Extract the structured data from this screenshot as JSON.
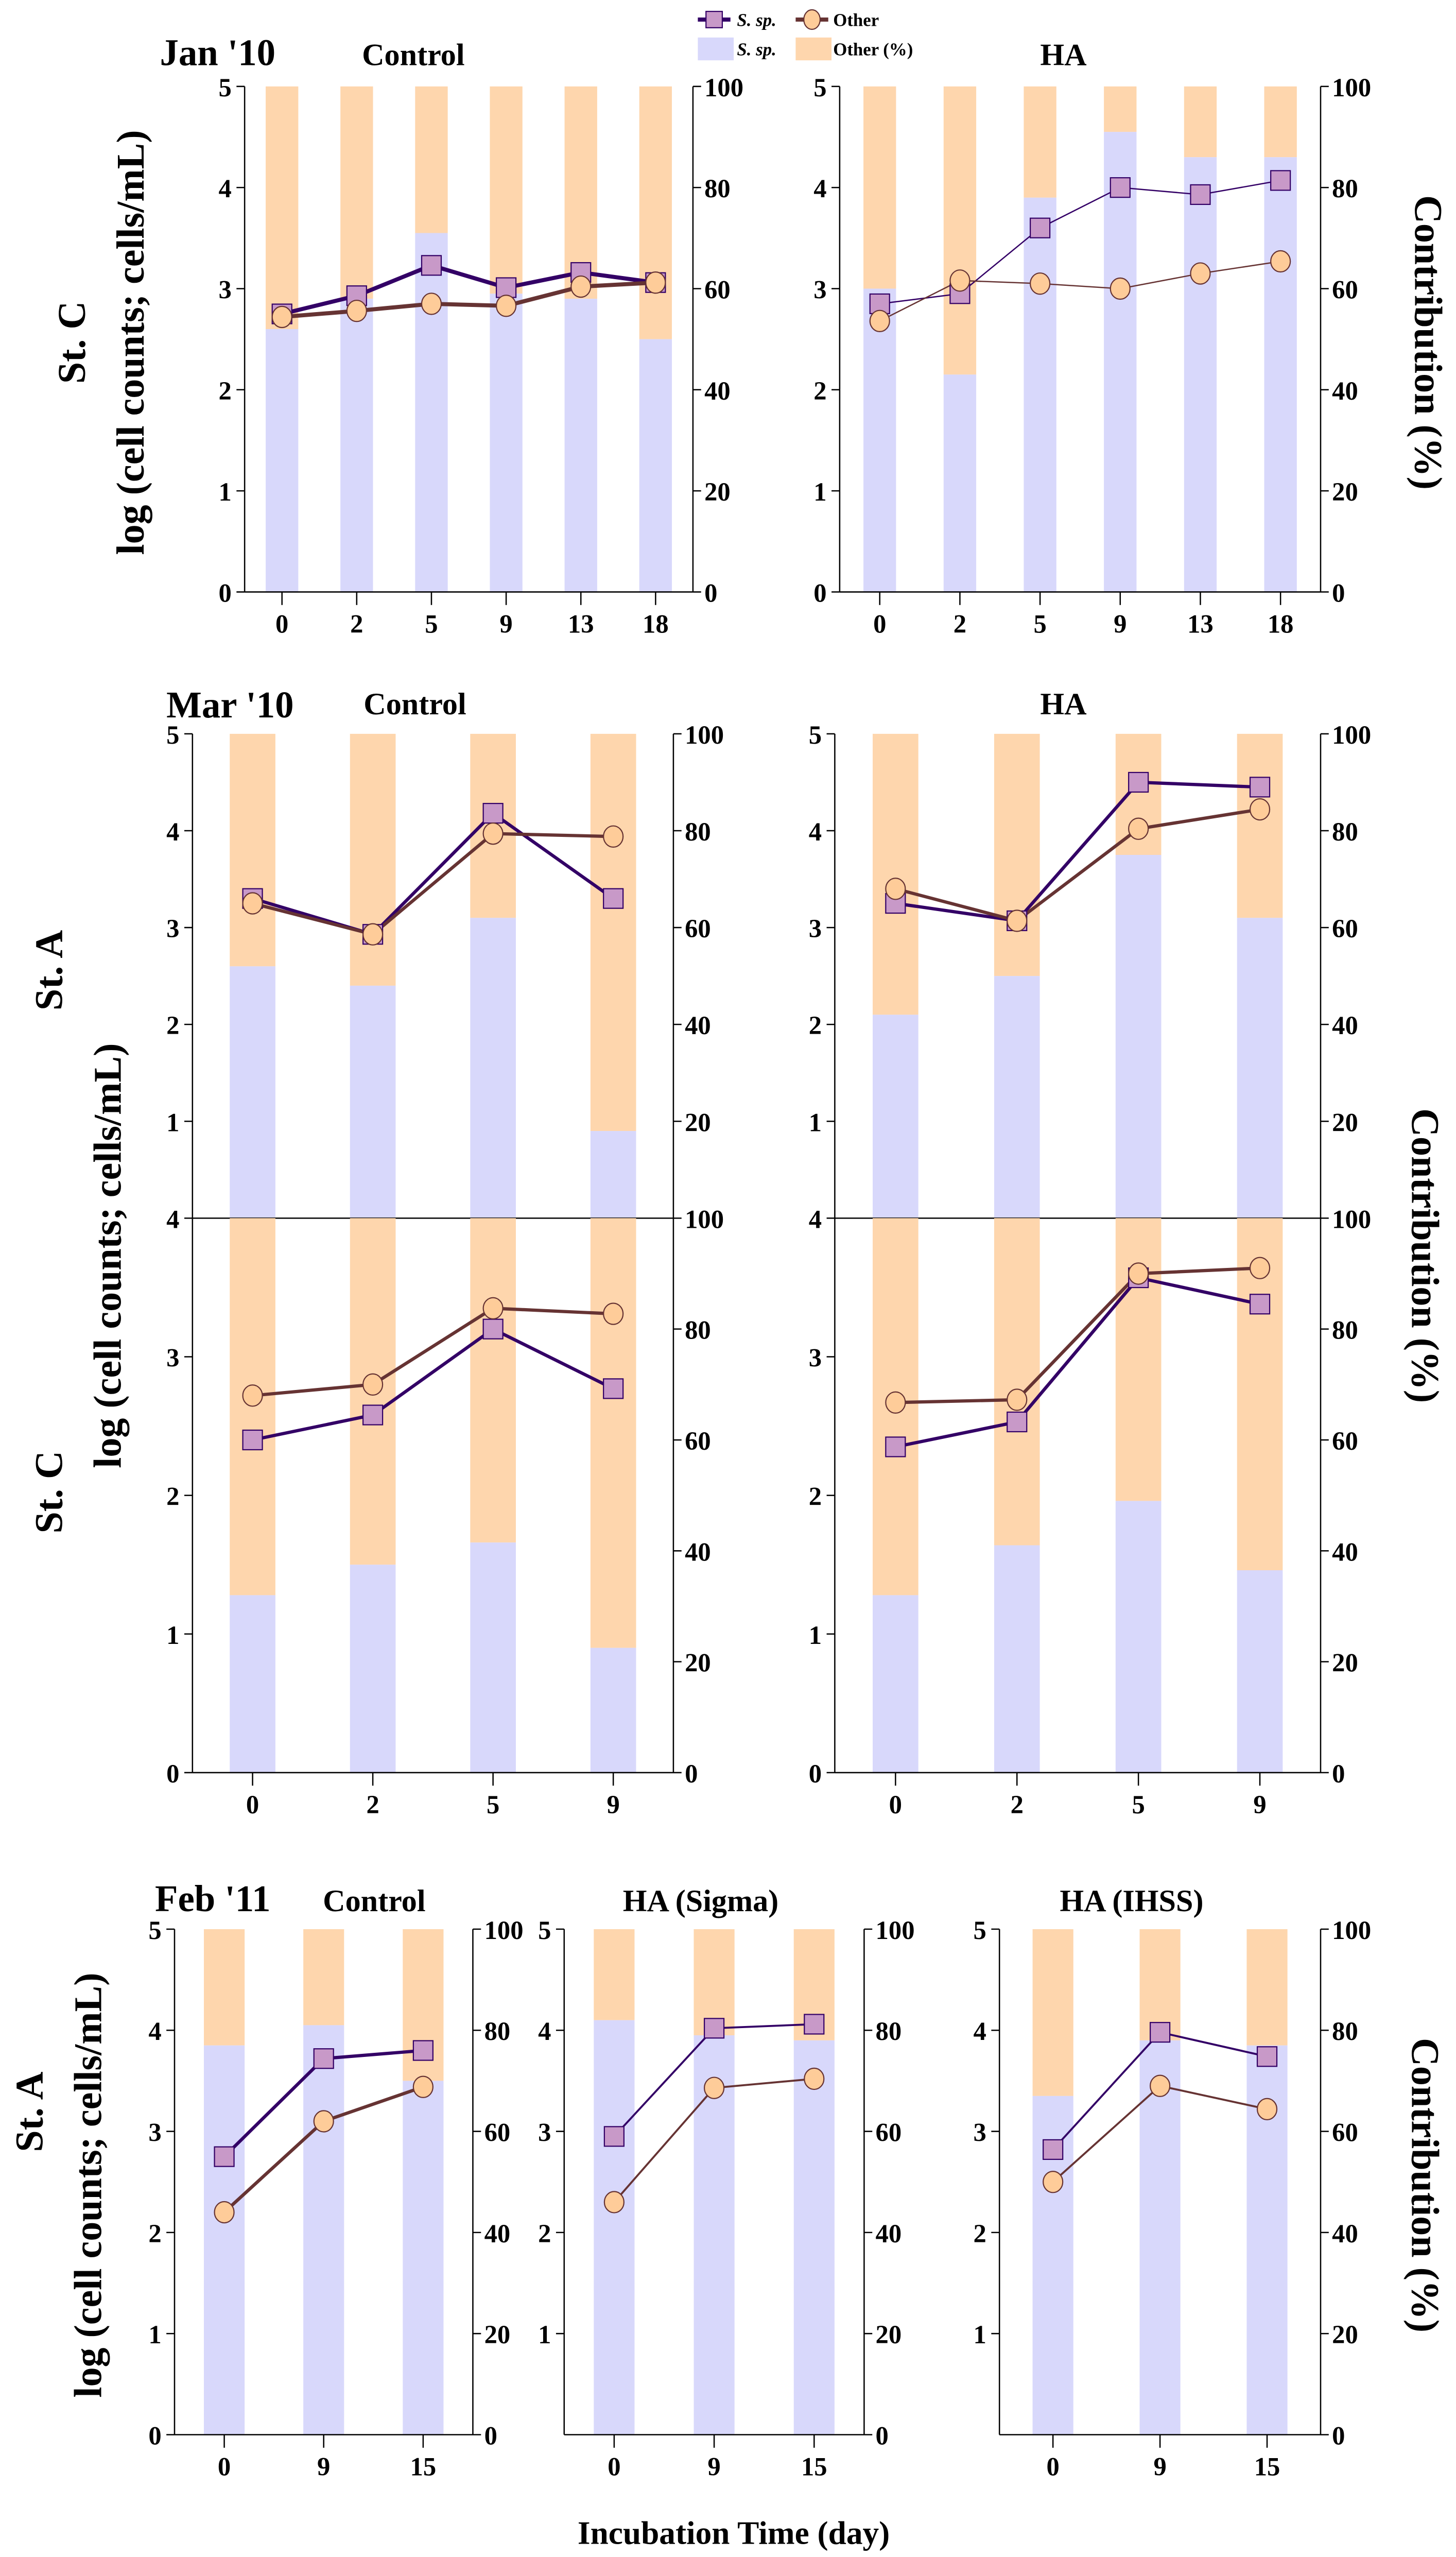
{
  "legend": {
    "line_sp": "S. sp.",
    "line_other": "Other",
    "bar_sp": "S. sp.",
    "bar_other": "Other (%)"
  },
  "labels": {
    "row_jan": "St. C",
    "row_mar_a": "St. A",
    "row_mar_c": "St. C",
    "row_feb": "St. A",
    "ylabel_left": "log (cell counts; cells/mL)",
    "ylabel_right": "Contribution (%)",
    "xlabel": "Incubation Time (day)",
    "date_jan": "Jan '10",
    "date_mar": "Mar '10",
    "date_feb": "Feb '11",
    "control": "Control",
    "ha": "HA",
    "ha_sigma": "HA (Sigma)",
    "ha_ihss": "HA (IHSS)"
  },
  "colors": {
    "sp_bar": "#d8d8fb",
    "other_bar": "#fed6ad",
    "sp_line": "#330066",
    "sp_marker": "#c899c8",
    "other_line": "#663333",
    "other_marker": "#fecc99"
  },
  "chart_data": [
    {
      "id": "jan-control",
      "type": "bar+line",
      "title": "Control",
      "categories": [
        "0",
        "2",
        "5",
        "9",
        "13",
        "18"
      ],
      "ylim": [
        0,
        5
      ],
      "y2lim": [
        0,
        100
      ],
      "yticks": [
        0,
        1,
        2,
        3,
        4,
        5
      ],
      "y2ticks": [
        0,
        20,
        40,
        60,
        80,
        100
      ],
      "sp_percent": [
        52,
        58,
        71,
        59,
        58,
        50
      ],
      "sp_log": [
        2.75,
        2.93,
        3.23,
        3.01,
        3.16,
        3.06
      ],
      "other_log": [
        2.72,
        2.78,
        2.85,
        2.83,
        3.02,
        3.06
      ]
    },
    {
      "id": "jan-ha",
      "type": "bar+line",
      "title": "HA",
      "categories": [
        "0",
        "2",
        "5",
        "9",
        "13",
        "18"
      ],
      "ylim": [
        0,
        5
      ],
      "y2lim": [
        0,
        100
      ],
      "yticks": [
        0,
        1,
        2,
        3,
        4,
        5
      ],
      "y2ticks": [
        0,
        20,
        40,
        60,
        80,
        100
      ],
      "sp_percent": [
        60,
        43,
        78,
        91,
        86,
        86
      ],
      "sp_log": [
        2.85,
        2.95,
        3.6,
        4.0,
        3.93,
        4.07
      ],
      "other_log": [
        2.68,
        3.08,
        3.05,
        3.0,
        3.15,
        3.27
      ]
    },
    {
      "id": "mar-a-control",
      "type": "bar+line",
      "title": "Control",
      "categories": [
        "0",
        "2",
        "5",
        "9"
      ],
      "ylim": [
        0,
        5
      ],
      "y2lim": [
        0,
        100
      ],
      "yticks": [
        1,
        2,
        3,
        4,
        5
      ],
      "y2ticks": [
        20,
        40,
        60,
        80,
        100
      ],
      "sp_percent": [
        52,
        48,
        62,
        18
      ],
      "sp_log": [
        3.3,
        2.93,
        4.18,
        3.3
      ],
      "other_log": [
        3.25,
        2.93,
        3.97,
        3.94
      ]
    },
    {
      "id": "mar-a-ha",
      "type": "bar+line",
      "title": "HA",
      "categories": [
        "0",
        "2",
        "5",
        "9"
      ],
      "ylim": [
        0,
        5
      ],
      "y2lim": [
        0,
        100
      ],
      "yticks": [
        1,
        2,
        3,
        4,
        5
      ],
      "y2ticks": [
        20,
        40,
        60,
        80,
        100
      ],
      "sp_percent": [
        42,
        50,
        75,
        62
      ],
      "sp_log": [
        3.25,
        3.07,
        4.5,
        4.45
      ],
      "other_log": [
        3.4,
        3.07,
        4.02,
        4.22
      ]
    },
    {
      "id": "mar-c-control",
      "type": "bar+line",
      "title": "Control",
      "categories": [
        "0",
        "2",
        "5",
        "9"
      ],
      "ylim": [
        0,
        4
      ],
      "y2lim": [
        0,
        100
      ],
      "yticks": [
        0,
        1,
        2,
        3,
        4
      ],
      "y2ticks": [
        0,
        20,
        40,
        60,
        80,
        100
      ],
      "sp_percent": [
        32,
        37.5,
        41.5,
        22.5
      ],
      "sp_log": [
        2.4,
        2.58,
        3.2,
        2.77
      ],
      "other_log": [
        2.72,
        2.8,
        3.35,
        3.31
      ]
    },
    {
      "id": "mar-c-ha",
      "type": "bar+line",
      "title": "HA",
      "categories": [
        "0",
        "2",
        "5",
        "9"
      ],
      "ylim": [
        0,
        4
      ],
      "y2lim": [
        0,
        100
      ],
      "yticks": [
        0,
        1,
        2,
        3,
        4
      ],
      "y2ticks": [
        0,
        20,
        40,
        60,
        80,
        100
      ],
      "sp_percent": [
        32,
        41,
        49,
        36.5
      ],
      "sp_log": [
        2.35,
        2.53,
        3.57,
        3.38
      ],
      "other_log": [
        2.67,
        2.69,
        3.6,
        3.64
      ]
    },
    {
      "id": "feb-control",
      "type": "bar+line",
      "title": "Control",
      "categories": [
        "0",
        "9",
        "15"
      ],
      "ylim": [
        0,
        5
      ],
      "y2lim": [
        0,
        100
      ],
      "yticks": [
        0,
        1,
        2,
        3,
        4,
        5
      ],
      "y2ticks": [
        0,
        20,
        40,
        60,
        80,
        100
      ],
      "sp_percent": [
        77,
        81,
        70
      ],
      "sp_log": [
        2.75,
        3.72,
        3.8
      ],
      "other_log": [
        2.2,
        3.1,
        3.44
      ]
    },
    {
      "id": "feb-sigma",
      "type": "bar+line",
      "title": "HA (Sigma)",
      "categories": [
        "0",
        "9",
        "15"
      ],
      "ylim": [
        0,
        5
      ],
      "y2lim": [
        0,
        100
      ],
      "yticks": [
        1,
        2,
        3,
        4,
        5
      ],
      "y2ticks": [
        0,
        20,
        40,
        60,
        80,
        100
      ],
      "sp_percent": [
        82,
        79,
        78
      ],
      "sp_log": [
        2.95,
        4.02,
        4.06
      ],
      "other_log": [
        2.3,
        3.43,
        3.52
      ]
    },
    {
      "id": "feb-ihss",
      "type": "bar+line",
      "title": "HA (IHSS)",
      "categories": [
        "0",
        "9",
        "15"
      ],
      "ylim": [
        0,
        5
      ],
      "y2lim": [
        0,
        100
      ],
      "yticks": [
        1,
        2,
        3,
        4,
        5
      ],
      "y2ticks": [
        0,
        20,
        40,
        60,
        80,
        100
      ],
      "sp_percent": [
        67,
        78,
        77
      ],
      "sp_log": [
        2.82,
        3.98,
        3.74
      ],
      "other_log": [
        2.5,
        3.45,
        3.22
      ]
    }
  ]
}
